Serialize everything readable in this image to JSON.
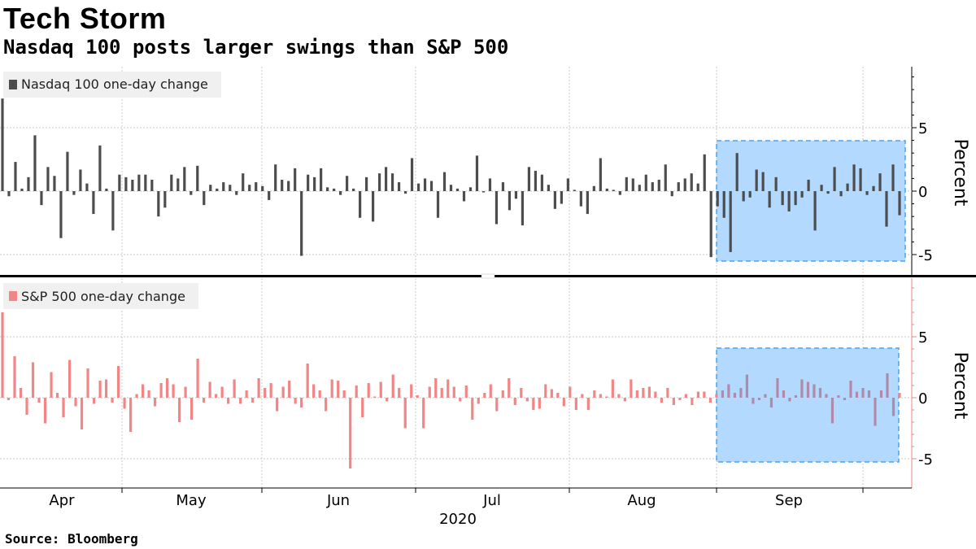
{
  "title": "Tech Storm",
  "subtitle": "Nasdaq 100 posts larger swings than S&P 500",
  "source": "Source:  Bloomberg",
  "chart_data": [
    {
      "type": "bar",
      "legend": "Nasdaq 100 one-day change",
      "legend_position": "top-left",
      "ylabel": "Percent",
      "y_ticks": [
        5,
        0,
        -5
      ],
      "ylim": [
        -5.5,
        9.5
      ],
      "color": "#4d4d4d",
      "grid": true,
      "values": [
        7.3,
        -0.4,
        2.3,
        0.2,
        1.1,
        4.4,
        -1.1,
        1.9,
        1.2,
        -3.7,
        3.1,
        -0.3,
        1.7,
        0.6,
        -1.8,
        3.6,
        0.2,
        -3.1,
        1.3,
        1.1,
        0.9,
        1.3,
        1.3,
        0.9,
        -2.0,
        -1.3,
        1.3,
        1.0,
        1.9,
        -0.3,
        2.0,
        -1.1,
        0.5,
        0.2,
        0.7,
        0.5,
        -0.3,
        1.4,
        0.5,
        0.7,
        0.4,
        -0.7,
        2.1,
        0.9,
        0.8,
        1.8,
        -5.1,
        1.3,
        1.1,
        1.8,
        0.3,
        0.2,
        -0.3,
        1.2,
        0.2,
        -2.1,
        1.1,
        -2.4,
        1.4,
        1.9,
        1.4,
        0.7,
        -0.2,
        2.6,
        0.6,
        1.0,
        0.8,
        -2.1,
        1.5,
        0.5,
        0.2,
        -0.8,
        0.3,
        2.8,
        -0.1,
        1.0,
        -2.6,
        0.7,
        -1.5,
        -0.6,
        -2.7,
        1.9,
        1.6,
        1.3,
        0.5,
        -1.4,
        -1.0,
        1.0,
        0.1,
        -1.2,
        -1.8,
        0.4,
        2.6,
        0.2,
        0.1,
        -0.3,
        1.1,
        1.0,
        0.5,
        1.3,
        0.7,
        0.9,
        2.1,
        -0.4,
        0.7,
        1.0,
        1.4,
        0.6,
        2.9,
        -5.2,
        -1.2,
        -2.1,
        -4.8,
        3.0,
        -0.8,
        -0.5,
        1.7,
        1.5,
        -1.3,
        1.1,
        -1.1,
        -1.6,
        -1.1,
        -0.5,
        0.9,
        -3.1,
        0.5,
        -0.2,
        1.9,
        -0.4,
        0.6,
        2.1,
        1.8,
        -0.3,
        0.4,
        1.4,
        -2.8,
        2.1,
        -1.9
      ]
    },
    {
      "type": "bar",
      "legend": "S&P 500 one-day change",
      "legend_position": "top-left",
      "ylabel": "Percent",
      "y_ticks": [
        5,
        0,
        -5
      ],
      "ylim": [
        -7.3,
        9.5
      ],
      "color": "#f28585",
      "grid": true,
      "values": [
        7.0,
        -0.2,
        3.4,
        0.8,
        -1.4,
        2.9,
        -0.4,
        -2.1,
        2.1,
        0.4,
        -1.6,
        3.1,
        -0.7,
        -2.6,
        2.4,
        -0.5,
        1.4,
        1.5,
        -0.4,
        2.6,
        -0.9,
        -2.8,
        0.3,
        1.1,
        0.6,
        -0.7,
        1.2,
        1.6,
        1.1,
        -2.0,
        0.9,
        -1.8,
        3.2,
        -0.4,
        1.3,
        0.3,
        0.9,
        -0.5,
        1.5,
        -0.5,
        0.6,
        -0.4,
        1.6,
        0.8,
        1.2,
        -1.1,
        0.9,
        1.4,
        -0.5,
        -0.8,
        2.8,
        1.1,
        0.6,
        -1.1,
        1.5,
        1.4,
        0.6,
        -5.8,
        1.0,
        -1.6,
        1.2,
        0.1,
        1.3,
        -0.3,
        1.9,
        0.8,
        -2.5,
        1.1,
        0.2,
        -2.5,
        0.9,
        1.6,
        0.8,
        1.5,
        0.9,
        -0.3,
        1.0,
        -1.8,
        -0.5,
        0.4,
        1.1,
        -1.1,
        0.6,
        1.6,
        -0.6,
        0.8,
        -0.3,
        -1.0,
        -0.9,
        1.1,
        0.7,
        0.4,
        -0.7,
        0.9,
        -1.0,
        0.3,
        -1.0,
        0.6,
        0.3,
        0.1,
        1.5,
        0.3,
        -0.3,
        1.5,
        0.6,
        0.8,
        0.9,
        0.5,
        -0.4,
        0.8,
        -0.6,
        -0.2,
        0.3,
        -0.6,
        0.5,
        0.5,
        -0.4,
        0.3,
        0.6,
        1.1,
        0.4,
        0.8,
        1.9,
        -0.5,
        -0.2,
        0.3,
        -0.8,
        1.6,
        0.6,
        -0.3,
        0.2,
        1.5,
        1.3,
        1.1,
        0.8,
        0.3,
        -2.1,
        0.2,
        -0.2,
        1.4,
        0.5,
        0.8,
        0.6,
        -2.3,
        0.6,
        2.0,
        -1.5,
        0.4
      ]
    }
  ],
  "x_axis": {
    "months": [
      "Apr",
      "May",
      "Jun",
      "Jul",
      "Aug",
      "Sep"
    ],
    "year": "2020"
  }
}
